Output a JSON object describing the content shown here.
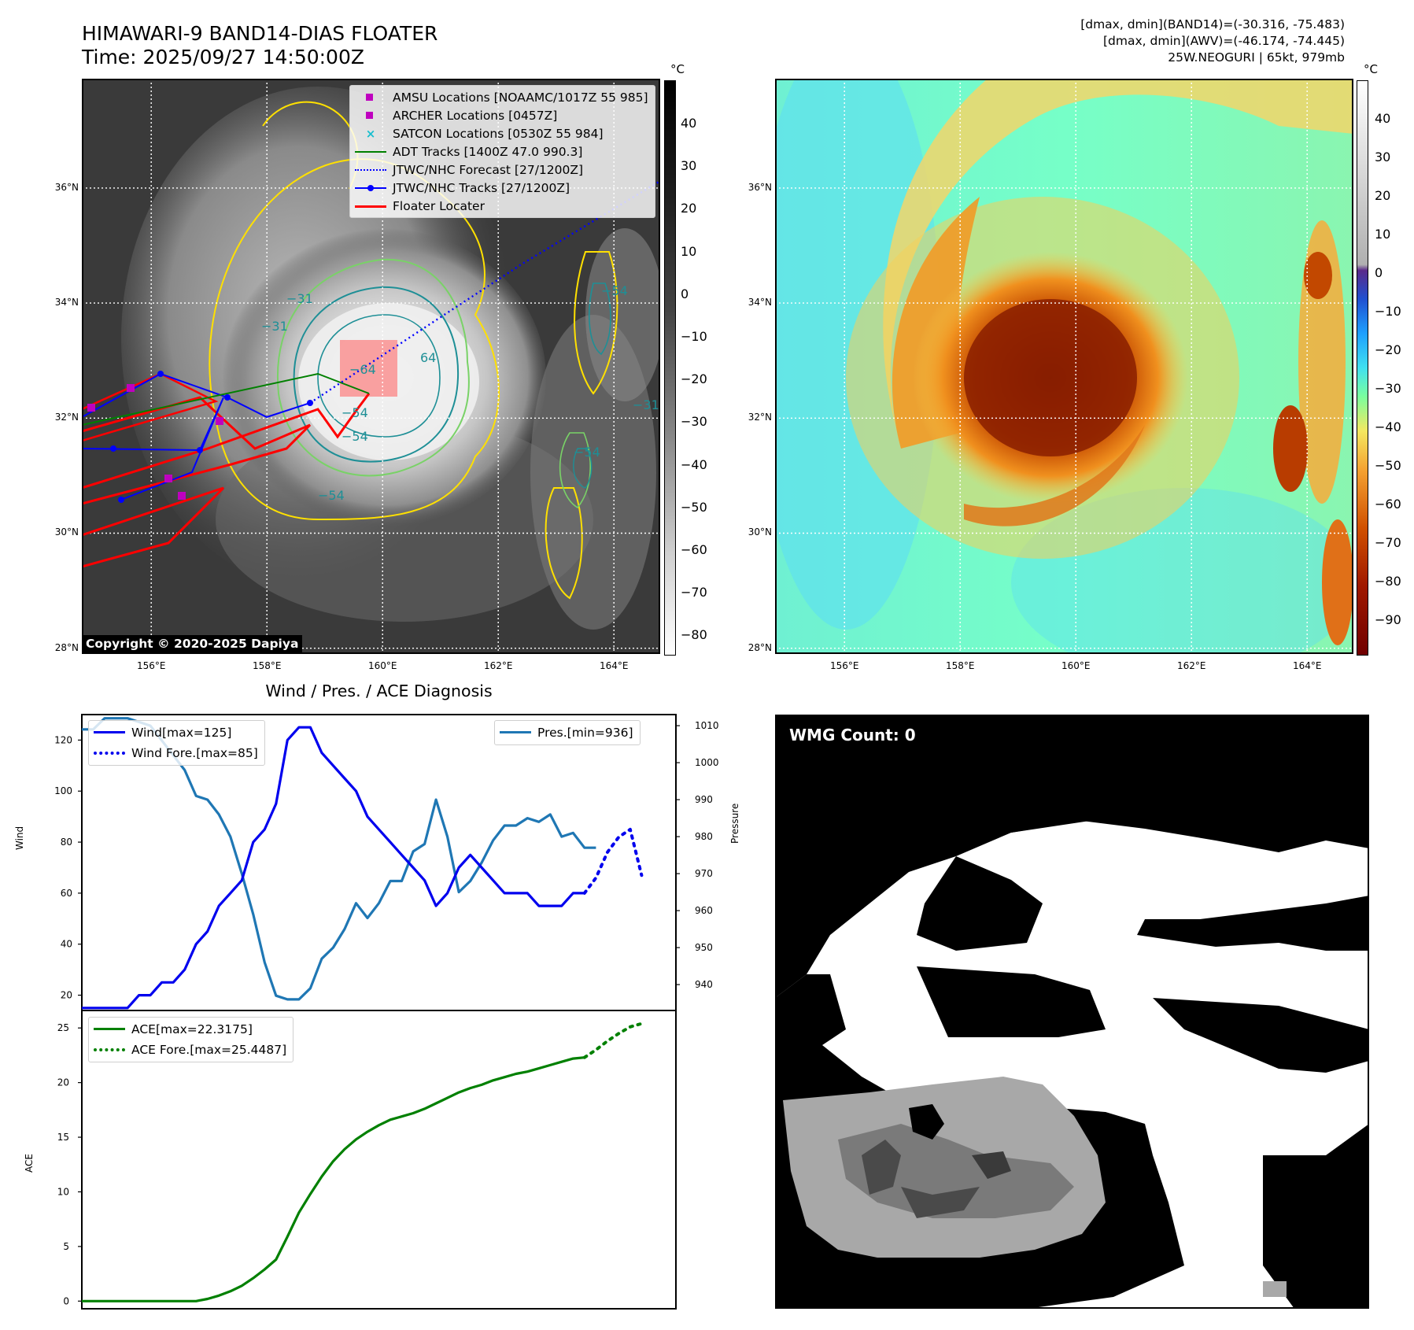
{
  "header": {
    "title_line1": "HIMAWARI-9 BAND14-DIAS FLOATER",
    "title_line2": "Time: 2025/09/27 14:50:00Z",
    "info_line1": "[dmax, dmin](BAND14)=(-30.316, -75.483)",
    "info_line2": "[dmax, dmin](AWV)=(-46.174, -74.445)",
    "info_line3": "25W.NEOGURI | 65kt, 979mb"
  },
  "map_axes": {
    "lat_labels": [
      "36°N",
      "34°N",
      "32°N",
      "30°N",
      "28°N"
    ],
    "lat_values": [
      36,
      34,
      32,
      30,
      28
    ],
    "lon_labels": [
      "156°E",
      "158°E",
      "160°E",
      "162°E",
      "164°E"
    ],
    "lon_values": [
      156,
      158,
      160,
      162,
      164
    ],
    "lon_range": [
      154.8,
      164.8
    ],
    "lat_range": [
      27.9,
      37.9
    ]
  },
  "ir_panel": {
    "colorbar_unit": "°C",
    "colorbar_ticks": [
      "40",
      "30",
      "20",
      "10",
      "0",
      "−10",
      "−20",
      "−30",
      "−40",
      "−50",
      "−60",
      "−70",
      "−80"
    ],
    "copyright": "Copyright © 2020-2025 Dapiya",
    "contour_labels": [
      "−31",
      "−31",
      "−54",
      "−54",
      "−64",
      "64",
      "−54",
      "−54",
      "−54",
      "−31"
    ],
    "legend": [
      {
        "label": "AMSU Locations [NOAAMC/1017Z 55 985]",
        "color": "#bf00bf"
      },
      {
        "label": "ARCHER Locations [0457Z]",
        "color": "#bf00bf"
      },
      {
        "label": "SATCON Locations [0530Z 55 984]",
        "color": "#17becf"
      },
      {
        "label": "ADT Tracks [1400Z 47.0 990.3]",
        "color": "#008000"
      },
      {
        "label": "JTWC/NHC Forecast [27/1200Z]",
        "color": "#0000ff"
      },
      {
        "label": "JTWC/NHC Tracks [27/1200Z]",
        "color": "#0000ff"
      },
      {
        "label": "Floater Locater",
        "color": "#ff0000"
      }
    ]
  },
  "awv_panel": {
    "colorbar_unit": "°C",
    "colorbar_ticks": [
      "40",
      "30",
      "20",
      "10",
      "0",
      "−10",
      "−20",
      "−30",
      "−40",
      "−50",
      "−60",
      "−70",
      "−80",
      "−90"
    ]
  },
  "wmg_panel": {
    "badge": "WMG Count: 0"
  },
  "colors": {
    "wind": "#0000ee",
    "pressure": "#1f77b4",
    "ace": "#008000",
    "forecast_track": "#0000ff",
    "floater": "#ff0000"
  },
  "chart_data": [
    {
      "type": "line",
      "title": "Wind / Pres. / ACE Diagnosis",
      "ylabel": "Wind",
      "y2label": "Pressure",
      "x_range": [
        0,
        52
      ],
      "ylim": [
        14,
        130
      ],
      "y2lim": [
        933,
        1013
      ],
      "yticks": [
        20,
        40,
        60,
        80,
        100,
        120
      ],
      "y2ticks": [
        940,
        950,
        960,
        970,
        980,
        990,
        1000,
        1010
      ],
      "legend_left": [
        "Wind[max=125]",
        "Wind Fore.[max=85]"
      ],
      "legend_right": [
        "Pres.[min=936]"
      ],
      "series": [
        {
          "name": "Wind[max=125]",
          "axis": "left",
          "style": "solid",
          "x": [
            0,
            1,
            2,
            3,
            4,
            5,
            6,
            7,
            8,
            9,
            10,
            11,
            12,
            13,
            14,
            15,
            16,
            17,
            18,
            19,
            20,
            21,
            22,
            23,
            24,
            25,
            26,
            27,
            28,
            29,
            30,
            31,
            32,
            33,
            34,
            35,
            36,
            37,
            38,
            39,
            40,
            41,
            42,
            43,
            44
          ],
          "y": [
            15,
            15,
            15,
            15,
            15,
            20,
            20,
            25,
            25,
            30,
            40,
            45,
            55,
            60,
            65,
            80,
            85,
            95,
            120,
            125,
            125,
            115,
            110,
            105,
            100,
            90,
            85,
            80,
            75,
            70,
            65,
            55,
            60,
            70,
            75,
            70,
            65,
            60,
            60,
            60,
            55,
            55,
            55,
            60,
            60
          ]
        },
        {
          "name": "Wind Fore.[max=85]",
          "axis": "left",
          "style": "dotted",
          "x": [
            44,
            45,
            46,
            47,
            48,
            49
          ],
          "y": [
            60,
            66,
            76,
            82,
            85,
            67
          ]
        },
        {
          "name": "Pres.[min=936]",
          "axis": "right",
          "style": "solid",
          "x": [
            0,
            1,
            2,
            3,
            4,
            5,
            6,
            7,
            8,
            9,
            10,
            11,
            12,
            13,
            14,
            15,
            16,
            17,
            18,
            19,
            20,
            21,
            22,
            23,
            24,
            25,
            26,
            27,
            28,
            29,
            30,
            31,
            32,
            33,
            34,
            35,
            36,
            37,
            38,
            39,
            40,
            41,
            42,
            43,
            44,
            45
          ],
          "y": [
            1009,
            1009,
            1012,
            1012,
            1012,
            1011,
            1010,
            1006,
            1002,
            998,
            991,
            990,
            986,
            980,
            970,
            959,
            946,
            937,
            936,
            936,
            939,
            947,
            950,
            955,
            962,
            958,
            962,
            968,
            968,
            976,
            978,
            990,
            980,
            965,
            968,
            973,
            979,
            983,
            983,
            985,
            984,
            986,
            980,
            981,
            977,
            977
          ]
        }
      ]
    },
    {
      "type": "line",
      "ylabel": "ACE",
      "x_range": [
        0,
        52
      ],
      "ylim": [
        -0.7,
        26.6
      ],
      "yticks": [
        0,
        5,
        10,
        15,
        20,
        25
      ],
      "legend": [
        "ACE[max=22.3175]",
        "ACE Fore.[max=25.4487]"
      ],
      "series": [
        {
          "name": "ACE[max=22.3175]",
          "style": "solid",
          "x": [
            0,
            1,
            2,
            3,
            4,
            5,
            6,
            7,
            8,
            9,
            10,
            11,
            12,
            13,
            14,
            15,
            16,
            17,
            18,
            19,
            20,
            21,
            22,
            23,
            24,
            25,
            26,
            27,
            28,
            29,
            30,
            31,
            32,
            33,
            34,
            35,
            36,
            37,
            38,
            39,
            40,
            41,
            42,
            43,
            44
          ],
          "y": [
            0,
            0,
            0,
            0,
            0,
            0,
            0,
            0,
            0,
            0,
            0,
            0.2,
            0.5,
            0.9,
            1.4,
            2.1,
            2.9,
            3.8,
            5.9,
            8.1,
            9.8,
            11.4,
            12.8,
            13.9,
            14.8,
            15.5,
            16.1,
            16.6,
            16.9,
            17.2,
            17.6,
            18.1,
            18.6,
            19.1,
            19.5,
            19.8,
            20.2,
            20.5,
            20.8,
            21.0,
            21.3,
            21.6,
            21.9,
            22.2,
            22.3
          ]
        },
        {
          "name": "ACE Fore.[max=25.4487]",
          "style": "dotted",
          "x": [
            44,
            45,
            46,
            47,
            48,
            49
          ],
          "y": [
            22.3,
            23.0,
            23.8,
            24.5,
            25.1,
            25.4
          ]
        }
      ]
    }
  ]
}
